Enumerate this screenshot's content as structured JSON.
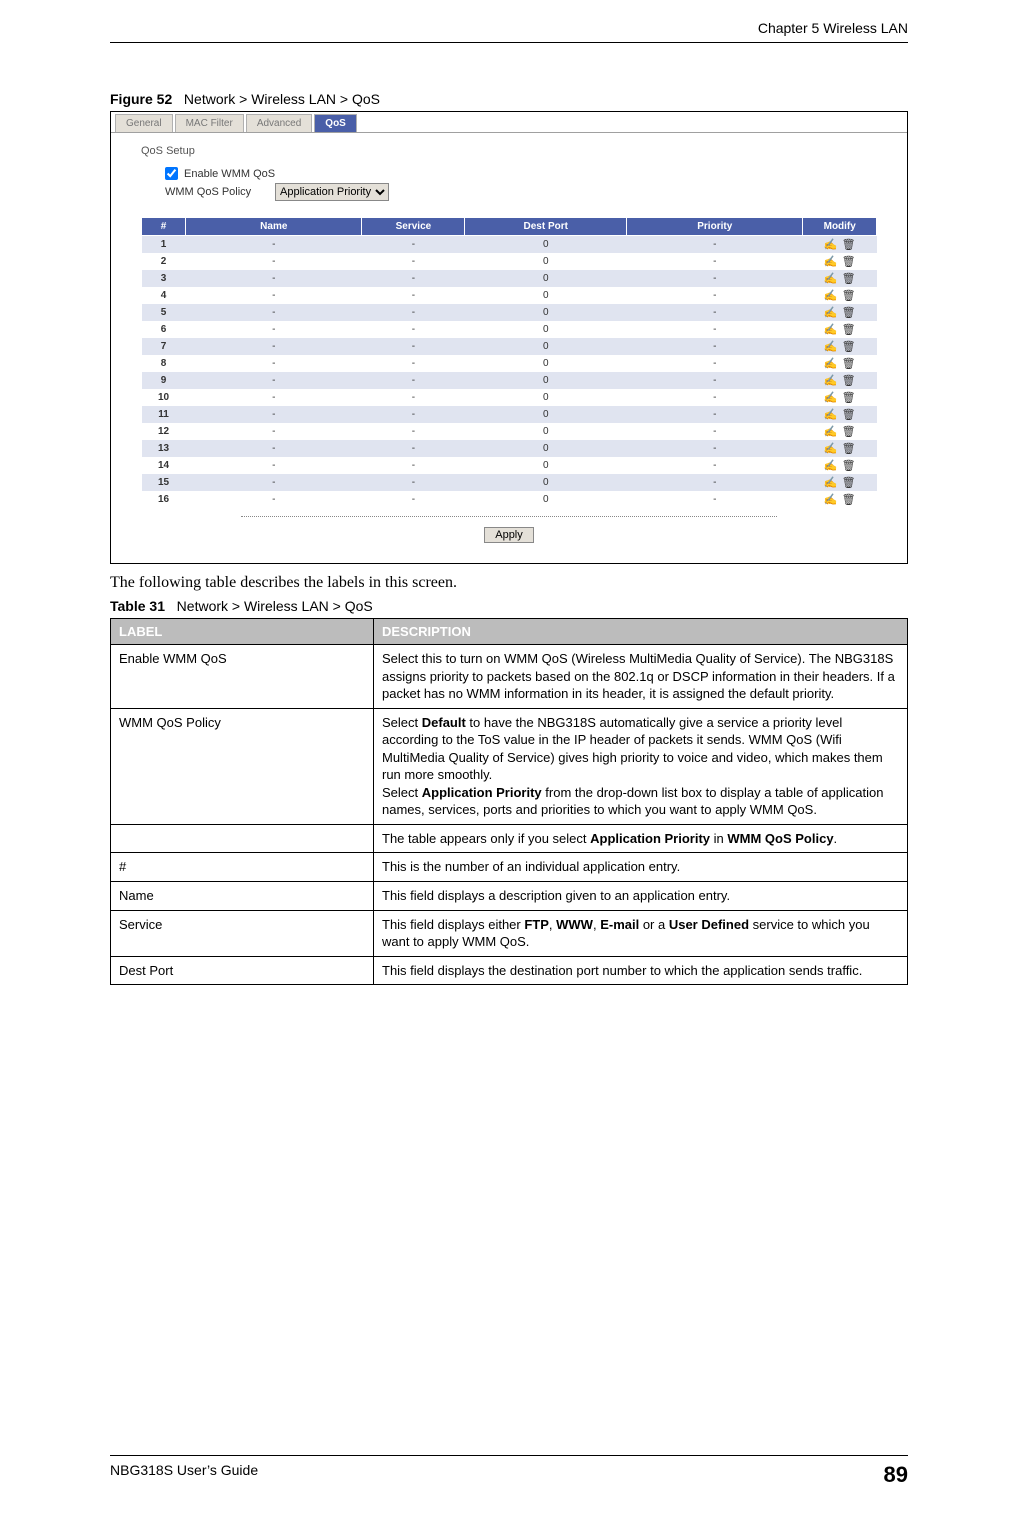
{
  "header": {
    "chapter": "Chapter 5 Wireless LAN"
  },
  "figure": {
    "label": "Figure 52",
    "caption": "Network > Wireless LAN > QoS"
  },
  "screenshot": {
    "tabs": {
      "items": [
        "General",
        "MAC Filter",
        "Advanced",
        "QoS"
      ],
      "active_index": 3
    },
    "panel_title": "QoS Setup",
    "checkbox_label": "Enable WMM QoS",
    "checkbox_checked": true,
    "policy_label": "WMM QoS Policy",
    "policy_value": "Application Priority",
    "table": {
      "columns": [
        "#",
        "Name",
        "Service",
        "Dest Port",
        "Priority",
        "Modify"
      ],
      "col_widths": [
        "6%",
        "24%",
        "14%",
        "22%",
        "24%",
        "10%"
      ],
      "header_bg": "#4a5fa8",
      "header_color": "#ffffff",
      "alt_bg": "#e0e4f0",
      "row_count": 16,
      "default_row": {
        "name": "-",
        "service": "-",
        "dest_port": "0",
        "priority": "-"
      }
    },
    "apply_button": "Apply"
  },
  "body_text": "The following table describes the labels in this screen.",
  "desc_table": {
    "caption_label": "Table 31",
    "caption_text": "Network > Wireless LAN > QoS",
    "header": {
      "label": "LABEL",
      "description": "DESCRIPTION"
    },
    "rows": [
      {
        "label": "Enable WMM QoS",
        "description": "Select this to turn on WMM QoS (Wireless MultiMedia Quality of Service). The NBG318S assigns priority to packets based on the 802.1q or DSCP information in their headers. If a packet has no WMM information in its header, it is assigned the default priority."
      },
      {
        "label": "WMM QoS Policy",
        "description": "Select <b>Default</b> to have the NBG318S automatically give a service a priority level according to the ToS value in the IP header of packets it sends. WMM QoS (Wifi MultiMedia Quality of Service) gives high priority to voice and video, which makes them run more smoothly.<br>Select <b>Application Priority</b> from the drop-down list box to display a table of application names, services, ports and priorities to which you want to apply WMM QoS."
      },
      {
        "label": "",
        "description": "The table appears only if you select <b>Application Priority</b> in <b>WMM QoS Policy</b>."
      },
      {
        "label": "#",
        "description": "This is the number of an individual application entry."
      },
      {
        "label": "Name",
        "description": "This field displays a description given to an application entry."
      },
      {
        "label": "Service",
        "description": "This field displays either <b>FTP</b>, <b>WWW</b>, <b>E-mail</b> or a <b>User Defined</b> service to which you want to apply WMM QoS."
      },
      {
        "label": "Dest Port",
        "description": "This field displays the destination port number to which the application sends traffic."
      }
    ]
  },
  "footer": {
    "guide": "NBG318S User’s Guide",
    "page": "89"
  }
}
